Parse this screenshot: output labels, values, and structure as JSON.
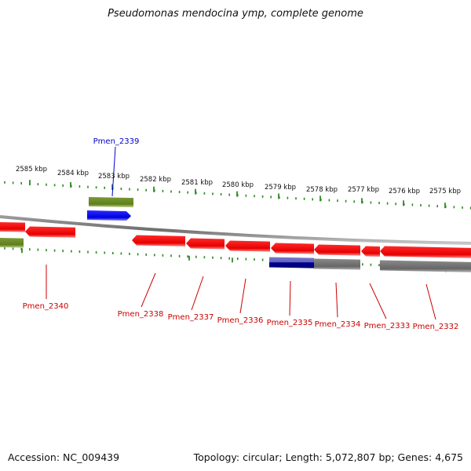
{
  "title": "Pseudomonas mendocina ymp, complete genome",
  "footer": {
    "accession": "Accession: NC_009439",
    "summary": "Topology: circular; Length: 5,072,807 bp; Genes: 4,675"
  },
  "colors": {
    "tick": "#2e8b22",
    "backbone": "#8a8a8a",
    "gene_red": "#ee0000",
    "gene_blue": "#1a1aff",
    "gene_navy": "#000080",
    "gene_olive": "#6b8e23",
    "gene_gray": "#707070",
    "label_red": "#cc0000",
    "label_blue": "#0000cc"
  },
  "ticks": [
    {
      "label": "2585 kbp"
    },
    {
      "label": "2584 kbp"
    },
    {
      "label": "2583 kbp"
    },
    {
      "label": "2582 kbp"
    },
    {
      "label": "2581 kbp"
    },
    {
      "label": "2580 kbp"
    },
    {
      "label": "2579 kbp"
    },
    {
      "label": "2578 kbp"
    },
    {
      "label": "2577 kbp"
    },
    {
      "label": "2576 kbp"
    },
    {
      "label": "2575 kbp"
    }
  ],
  "genes": [
    {
      "label": "Pmen_2339",
      "color": "blue"
    },
    {
      "label": "Pmen_2340",
      "color": "red"
    },
    {
      "label": "Pmen_2338",
      "color": "red"
    },
    {
      "label": "Pmen_2337",
      "color": "red"
    },
    {
      "label": "Pmen_2336",
      "color": "red"
    },
    {
      "label": "Pmen_2335",
      "color": "red"
    },
    {
      "label": "Pmen_2334",
      "color": "red"
    },
    {
      "label": "Pmen_2333",
      "color": "red"
    },
    {
      "label": "Pmen_2332",
      "color": "red"
    }
  ]
}
